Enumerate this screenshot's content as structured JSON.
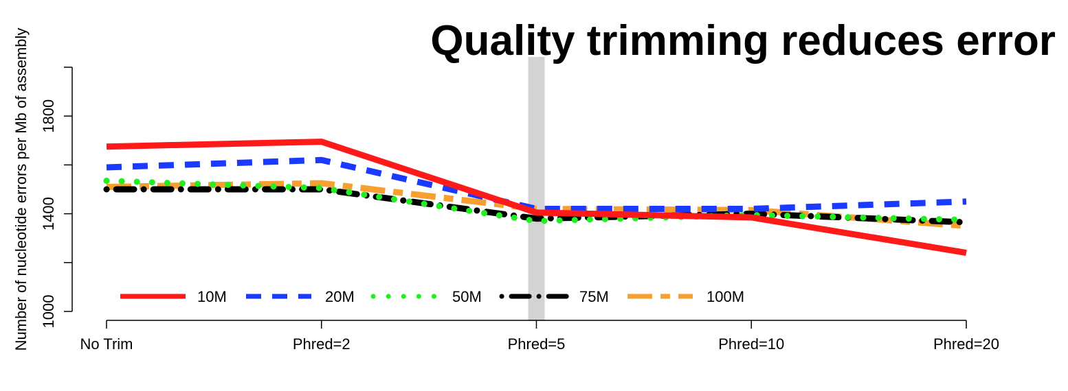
{
  "chart_data": {
    "type": "line",
    "title": "Quality trimming reduces error",
    "xlabel": "",
    "ylabel": "Number of nucleotide errors per Mb of assembly",
    "categories": [
      "No Trim",
      "Phred=2",
      "Phred=5",
      "Phred=10",
      "Phred=20"
    ],
    "ylim": [
      1000,
      2000
    ],
    "yticks": [
      1000,
      1400,
      1800
    ],
    "highlight_category": "Phred=5",
    "grid": false,
    "legend_position": "bottom-left",
    "series": [
      {
        "name": "10M",
        "values": [
          1675,
          1695,
          1405,
          1385,
          1240
        ],
        "color": "#ff1a1a",
        "dash": "solid"
      },
      {
        "name": "20M",
        "values": [
          1590,
          1620,
          1420,
          1420,
          1450
        ],
        "color": "#1a3aff",
        "dash": "dashed"
      },
      {
        "name": "50M",
        "values": [
          1535,
          1505,
          1370,
          1395,
          1375
        ],
        "color": "#22ee22",
        "dash": "dotted"
      },
      {
        "name": "75M",
        "values": [
          1500,
          1500,
          1380,
          1400,
          1365
        ],
        "color": "#000000",
        "dash": "dotdash"
      },
      {
        "name": "100M",
        "values": [
          1510,
          1525,
          1420,
          1415,
          1350
        ],
        "color": "#f5a030",
        "dash": "longdash"
      }
    ]
  }
}
